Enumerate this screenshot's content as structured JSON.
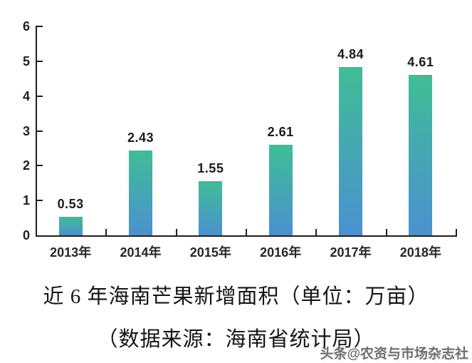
{
  "chart_data": {
    "type": "bar",
    "categories": [
      "2013年",
      "2014年",
      "2015年",
      "2016年",
      "2017年",
      "2018年"
    ],
    "values": [
      0.53,
      2.43,
      1.55,
      2.61,
      4.84,
      4.61
    ],
    "data_labels": [
      "0.53",
      "2.43",
      "1.55",
      "2.61",
      "4.84",
      "4.61"
    ],
    "y_ticks": [
      "0",
      "1",
      "2",
      "3",
      "4",
      "5",
      "6"
    ],
    "ylim": [
      0,
      6
    ],
    "xlabel": "",
    "ylabel": "",
    "grid": false,
    "legend": "none",
    "title": "近 6 年海南芒果新增面积（单位：万亩）",
    "subtitle": "（数据来源：海南省统计局）",
    "colors": {
      "bar_gradient_top": "#40bd96",
      "bar_gradient_bottom": "#4a91d1",
      "axis": "#1f1f1f",
      "label_text": "#1a1a1a"
    }
  },
  "caption": {
    "line1": "近 6 年海南芒果新增面积（单位：万亩）",
    "line2": "（数据来源：海南省统计局）"
  },
  "watermark": {
    "text": "头条@农资与市场杂志社",
    "color": "#6e6e6e"
  }
}
